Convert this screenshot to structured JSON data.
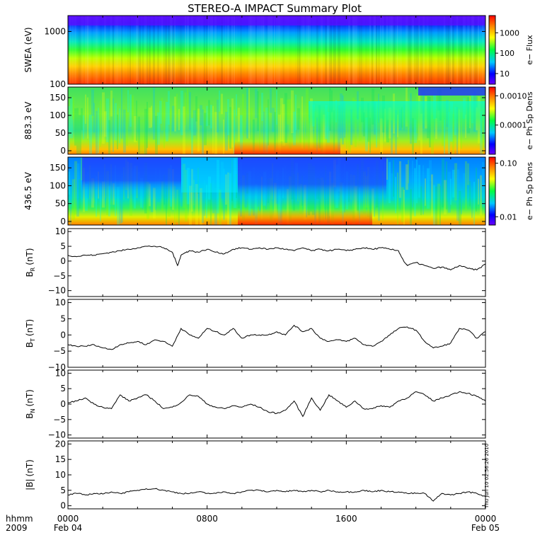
{
  "title": "STEREO-A IMPACT Summary Plot",
  "timestamp": "Thu Jun 10 02:56:26 2010",
  "time_axis": {
    "left_labels": [
      "hhmm",
      "2009"
    ],
    "ticks": [
      {
        "hours": 0,
        "line1": "0000",
        "line2": "Feb 04"
      },
      {
        "hours": 8,
        "line1": "0800",
        "line2": ""
      },
      {
        "hours": 16,
        "line1": "1600",
        "line2": ""
      },
      {
        "hours": 24,
        "line1": "0000",
        "line2": "Feb 05"
      }
    ],
    "range_hours": [
      0,
      24
    ]
  },
  "colors": {
    "trace": "#000000",
    "frame": "#000000"
  },
  "chart_data": [
    {
      "type": "heatmap",
      "ylabel": "SWEA (eV)",
      "yscale": "log",
      "ylim": [
        100,
        2000
      ],
      "yticks": [
        {
          "v": 100,
          "label": "100"
        },
        {
          "v": 1000,
          "label": "1000"
        }
      ],
      "colorbar": {
        "label": "e− Flux",
        "scale": "log",
        "range": [
          3,
          7000
        ],
        "ticks": [
          {
            "v": 10,
            "label": "10"
          },
          {
            "v": 100,
            "label": "100"
          },
          {
            "v": 1000,
            "label": "1000"
          }
        ]
      }
    },
    {
      "type": "heatmap",
      "ylabel": "883.3 eV",
      "yscale": "linear",
      "ylim": [
        -10,
        180
      ],
      "yticks": [
        {
          "v": 0,
          "label": "0"
        },
        {
          "v": 50,
          "label": "50"
        },
        {
          "v": 100,
          "label": "100"
        },
        {
          "v": 150,
          "label": "150"
        }
      ],
      "colorbar": {
        "label": "e− Ph Sp Dens",
        "scale": "log",
        "range": [
          1e-05,
          0.002
        ],
        "ticks": [
          {
            "v": 0.0001,
            "label": "0.0001"
          },
          {
            "v": 0.001,
            "label": "0.0010"
          }
        ]
      }
    },
    {
      "type": "heatmap",
      "ylabel": "436.5 eV",
      "yscale": "linear",
      "ylim": [
        -10,
        180
      ],
      "yticks": [
        {
          "v": 0,
          "label": "0"
        },
        {
          "v": 50,
          "label": "50"
        },
        {
          "v": 100,
          "label": "100"
        },
        {
          "v": 150,
          "label": "150"
        }
      ],
      "colorbar": {
        "label": "e− Ph Sp Dens",
        "scale": "log",
        "range": [
          0.007,
          0.13
        ],
        "ticks": [
          {
            "v": 0.01,
            "label": "0.01"
          },
          {
            "v": 0.1,
            "label": "0.10"
          }
        ]
      }
    },
    {
      "type": "line",
      "ylabel_main": "B",
      "ylabel_sub": "R",
      "ylabel_unit": "(nT)",
      "ylim": [
        -12,
        11
      ],
      "yticks": [
        {
          "v": -10,
          "label": "−10"
        },
        {
          "v": -5,
          "label": "−5"
        },
        {
          "v": 0,
          "label": "0"
        },
        {
          "v": 5,
          "label": "5"
        },
        {
          "v": 10,
          "label": "10"
        }
      ],
      "x": [
        0,
        0.5,
        1,
        1.5,
        2,
        2.5,
        3,
        3.5,
        4,
        4.5,
        5,
        5.5,
        6,
        6.3,
        6.5,
        6.8,
        7,
        7.5,
        8,
        8.5,
        9,
        9.5,
        10,
        10.5,
        11,
        11.5,
        12,
        12.5,
        13,
        13.5,
        14,
        14.5,
        15,
        15.5,
        16,
        16.5,
        17,
        17.5,
        18,
        18.5,
        19,
        19.3,
        19.5,
        20,
        20.5,
        21,
        21.5,
        22,
        22.5,
        23,
        23.5,
        24
      ],
      "y": [
        2,
        1.5,
        2,
        2,
        2.5,
        3,
        3.5,
        4,
        4.5,
        5,
        5,
        4.5,
        3,
        -1.5,
        2,
        3,
        3.5,
        3,
        4,
        3,
        2.5,
        4,
        4.5,
        4,
        4.5,
        4,
        4.5,
        4,
        3.5,
        4.5,
        3.5,
        4,
        3.5,
        4,
        3.5,
        4,
        4.5,
        4,
        4.5,
        4,
        3.5,
        0,
        -1.5,
        -0.5,
        -1.5,
        -2.5,
        -2,
        -3,
        -1.5,
        -2.5,
        -3,
        -1
      ]
    },
    {
      "type": "line",
      "ylabel_main": "B",
      "ylabel_sub": "T",
      "ylabel_unit": "(nT)",
      "ylim": [
        -10,
        11
      ],
      "yticks": [
        {
          "v": -10,
          "label": "−10"
        },
        {
          "v": -5,
          "label": "−5"
        },
        {
          "v": 0,
          "label": "0"
        },
        {
          "v": 5,
          "label": "5"
        },
        {
          "v": 10,
          "label": "10"
        }
      ],
      "x": [
        0,
        0.5,
        1,
        1.5,
        2,
        2.5,
        3,
        3.5,
        4,
        4.5,
        5,
        5.5,
        6,
        6.5,
        7,
        7.5,
        8,
        8.5,
        9,
        9.5,
        10,
        10.5,
        11,
        11.5,
        12,
        12.5,
        13,
        13.5,
        14,
        14.5,
        15,
        15.5,
        16,
        16.5,
        17,
        17.5,
        18,
        18.5,
        19,
        19.5,
        20,
        20.5,
        21,
        21.5,
        22,
        22.5,
        23,
        23.5,
        24
      ],
      "y": [
        -3,
        -3.5,
        -3.5,
        -3,
        -4,
        -4.5,
        -3,
        -2.5,
        -2,
        -3,
        -1.5,
        -2,
        -3.5,
        2,
        0,
        -1,
        2,
        1,
        0,
        2,
        -1,
        0,
        0,
        0,
        1,
        0,
        3,
        1,
        2,
        -1,
        -2,
        -1.5,
        -2,
        -1,
        -3,
        -3.5,
        -2,
        0,
        2,
        2.5,
        1.5,
        -2,
        -4,
        -3.5,
        -2.5,
        2,
        1.5,
        -1,
        1
      ]
    },
    {
      "type": "line",
      "ylabel_main": "B",
      "ylabel_sub": "N",
      "ylabel_unit": "(nT)",
      "ylim": [
        -11,
        11
      ],
      "yticks": [
        {
          "v": -10,
          "label": "−10"
        },
        {
          "v": -5,
          "label": "−5"
        },
        {
          "v": 0,
          "label": "0"
        },
        {
          "v": 5,
          "label": "5"
        },
        {
          "v": 10,
          "label": "10"
        }
      ],
      "x": [
        0,
        0.5,
        1,
        1.5,
        2,
        2.5,
        3,
        3.5,
        4,
        4.5,
        5,
        5.5,
        6,
        6.5,
        7,
        7.5,
        8,
        8.5,
        9,
        9.5,
        10,
        10.5,
        11,
        11.5,
        12,
        12.5,
        13,
        13.5,
        14,
        14.5,
        15,
        15.5,
        16,
        16.5,
        17,
        17.5,
        18,
        18.5,
        19,
        19.5,
        20,
        20.5,
        21,
        21.5,
        22,
        22.5,
        23,
        23.5,
        24
      ],
      "y": [
        0.5,
        1,
        2,
        0,
        -1,
        -1.5,
        3,
        1,
        2,
        3,
        1,
        -1.5,
        -1,
        0.5,
        3,
        2.5,
        0,
        -1,
        -1.5,
        -0.5,
        -1,
        0,
        -1,
        -2.5,
        -3,
        -2,
        1,
        -4,
        2,
        -2,
        3,
        1,
        -1,
        1,
        -1.5,
        -1.5,
        -0.5,
        -1,
        1,
        2,
        4,
        3,
        1,
        2,
        3,
        4,
        3.5,
        2.5,
        1
      ]
    },
    {
      "type": "line",
      "ylabel_main": "|B|",
      "ylabel_sub": "",
      "ylabel_unit": "(nT)",
      "ylim": [
        -1,
        21
      ],
      "yticks": [
        {
          "v": 0,
          "label": "0"
        },
        {
          "v": 5,
          "label": "5"
        },
        {
          "v": 10,
          "label": "10"
        },
        {
          "v": 15,
          "label": "15"
        },
        {
          "v": 20,
          "label": "20"
        }
      ],
      "x": [
        0,
        0.5,
        1,
        1.5,
        2,
        2.5,
        3,
        3.5,
        4,
        4.5,
        5,
        5.5,
        6,
        6.5,
        7,
        7.5,
        8,
        8.5,
        9,
        9.5,
        10,
        10.5,
        11,
        11.5,
        12,
        12.5,
        13,
        13.5,
        14,
        14.5,
        15,
        15.5,
        16,
        16.5,
        17,
        17.5,
        18,
        18.5,
        19,
        19.5,
        20,
        20.5,
        21,
        21.5,
        22,
        22.5,
        23,
        23.5,
        24
      ],
      "y": [
        3.5,
        4,
        3.5,
        4,
        3.8,
        4.5,
        4,
        4.5,
        5,
        5.5,
        5.5,
        5,
        4.5,
        4,
        4,
        4.5,
        4,
        4,
        4.5,
        4,
        4.5,
        5,
        5,
        4.5,
        5,
        4.5,
        5,
        4.5,
        5,
        4.5,
        5,
        4.5,
        4.5,
        4.5,
        5,
        4.5,
        5,
        4.5,
        4.5,
        4,
        4,
        4,
        1.5,
        4,
        3.5,
        4,
        4.5,
        4,
        3
      ]
    }
  ]
}
